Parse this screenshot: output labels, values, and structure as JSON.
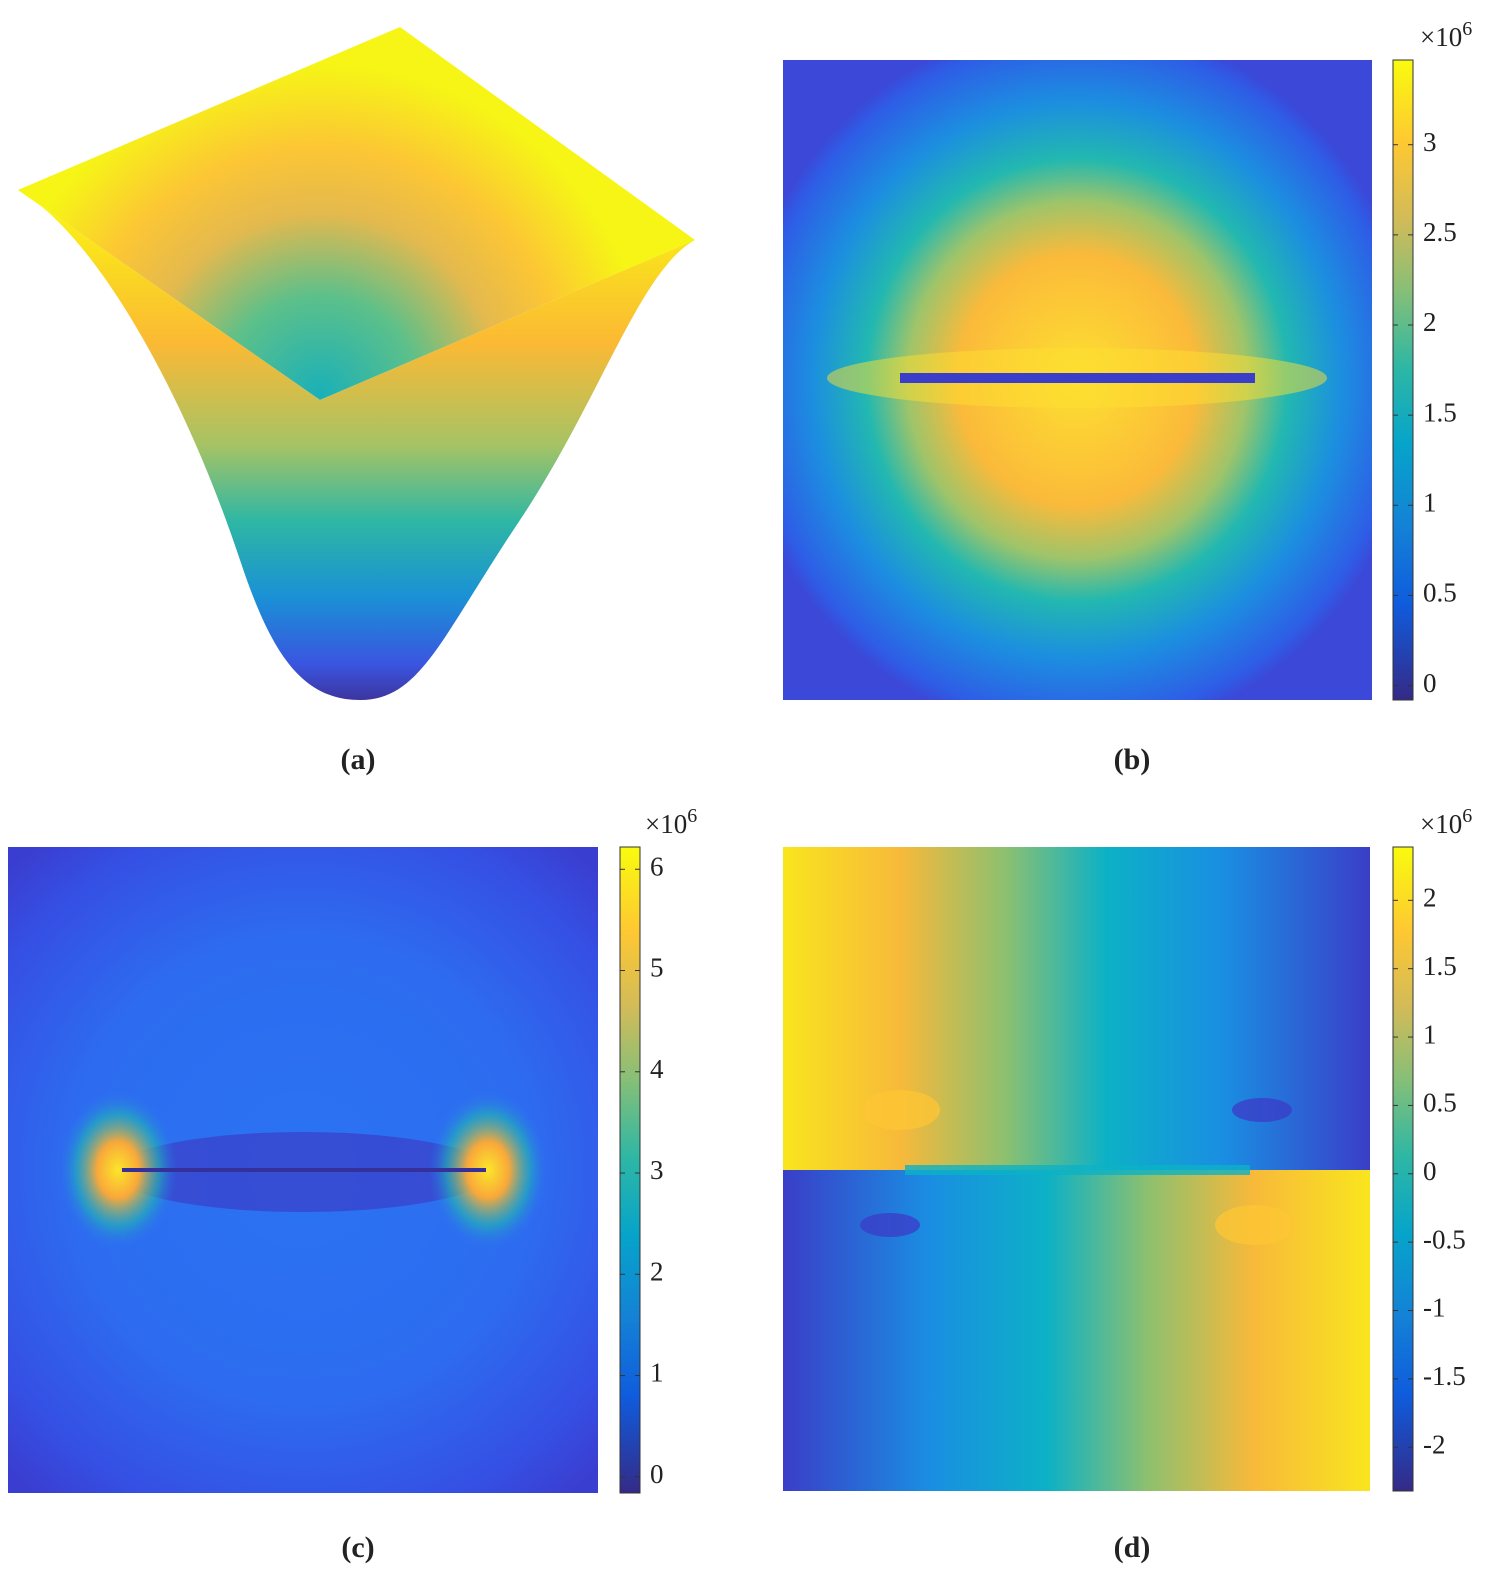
{
  "panels": [
    {
      "label": "(a)"
    },
    {
      "label": "(b)",
      "colorbar": {
        "lim": [
          -0.08,
          3.47
        ],
        "ticks": [
          0,
          0.5,
          1,
          1.5,
          2,
          2.5,
          3
        ],
        "multiplier": {
          "base": "×10",
          "exponent": "6"
        }
      }
    },
    {
      "label": "(c)",
      "colorbar": {
        "lim": [
          -0.16,
          6.22
        ],
        "ticks": [
          0,
          1,
          2,
          3,
          4,
          5,
          6
        ],
        "multiplier": {
          "base": "×10",
          "exponent": "6"
        }
      }
    },
    {
      "label": "(d)",
      "colorbar": {
        "lim": [
          -2.32,
          2.39
        ],
        "ticks": [
          -2,
          -1.5,
          -1,
          -0.5,
          0,
          0.5,
          1,
          1.5,
          2
        ],
        "multiplier": {
          "base": "×10",
          "exponent": "6"
        }
      }
    }
  ]
}
